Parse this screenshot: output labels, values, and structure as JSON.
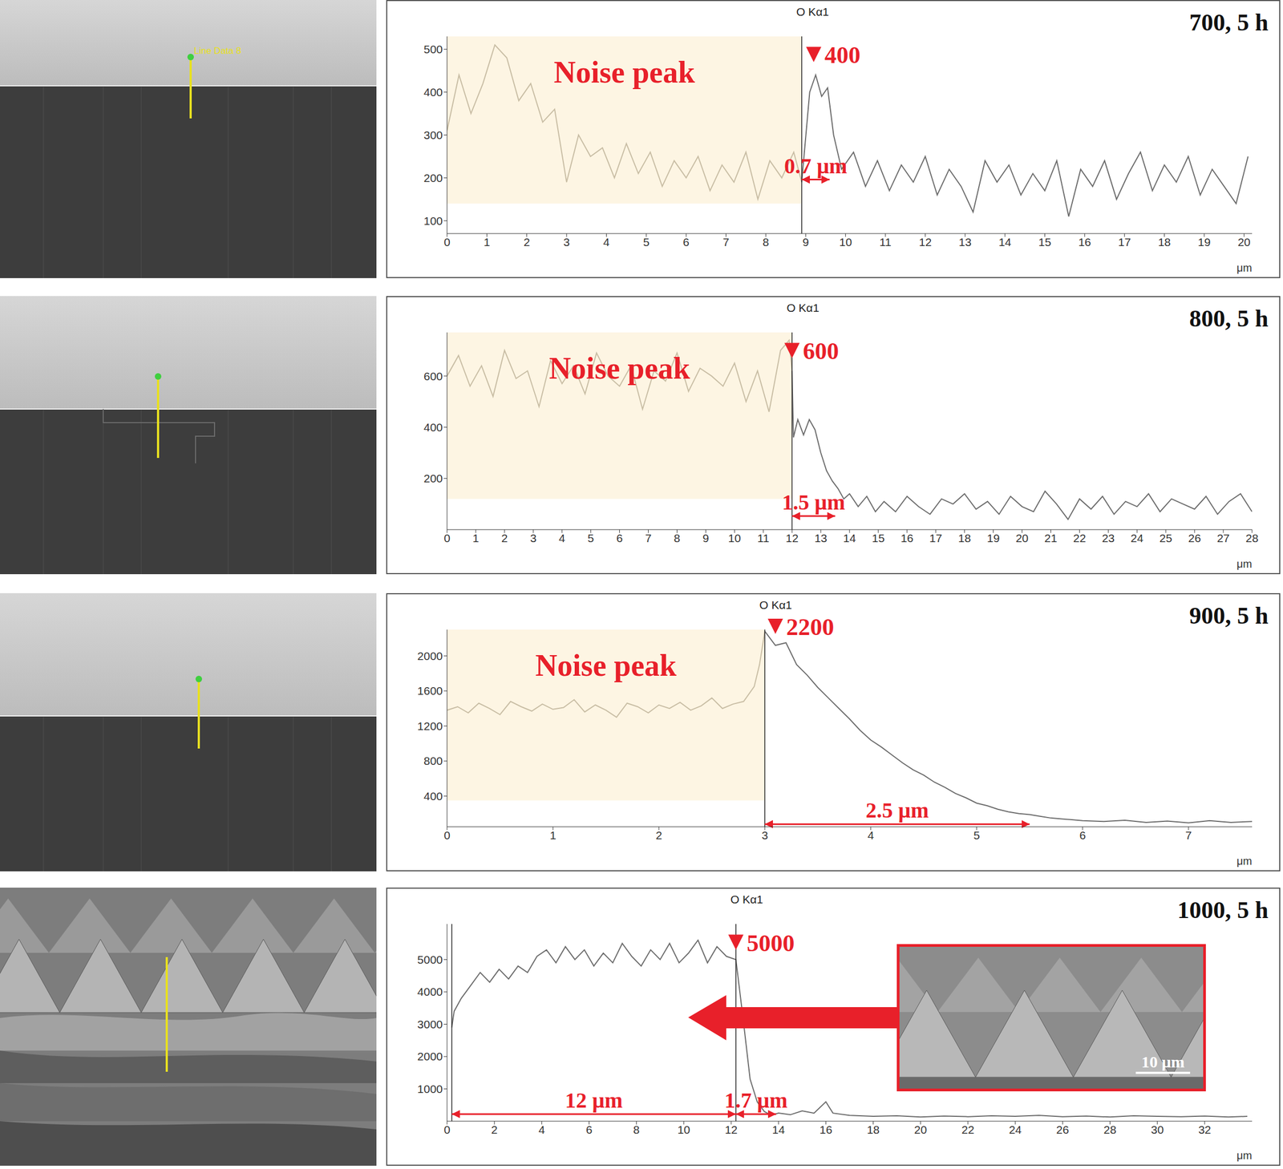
{
  "chart_data": [
    {
      "type": "line",
      "title": "700, 5 h",
      "x_label": "μm",
      "image_label": "Line Data 8",
      "xlim": [
        0,
        20.2
      ],
      "xticks": [
        0,
        1,
        2,
        3,
        4,
        5,
        6,
        7,
        8,
        9,
        10,
        11,
        12,
        13,
        14,
        15,
        16,
        17,
        18,
        19,
        20
      ],
      "ylim": [
        70,
        530
      ],
      "yticks": [
        100,
        200,
        300,
        400,
        500
      ],
      "series": [
        {
          "color": "#c8bda4",
          "x": [
            0,
            0.3,
            0.6,
            0.9,
            1.2,
            1.5,
            1.8,
            2.1,
            2.4,
            2.7,
            3.0,
            3.3,
            3.6,
            3.9,
            4.2,
            4.5,
            4.8,
            5.1,
            5.4,
            5.7,
            6.0,
            6.3,
            6.6,
            6.9,
            7.2,
            7.5,
            7.8,
            8.1,
            8.4,
            8.7,
            8.9
          ],
          "values": [
            310,
            440,
            350,
            420,
            510,
            480,
            380,
            420,
            330,
            360,
            190,
            300,
            250,
            270,
            200,
            280,
            210,
            260,
            180,
            240,
            200,
            250,
            170,
            230,
            190,
            260,
            150,
            240,
            200,
            260,
            190
          ]
        },
        {
          "color": "#6b6b6b",
          "x": [
            8.9,
            9.1,
            9.25,
            9.4,
            9.55,
            9.7,
            9.9,
            10.2,
            10.5,
            10.8,
            11.1,
            11.4,
            11.7,
            12.0,
            12.3,
            12.6,
            12.9,
            13.2,
            13.5,
            13.8,
            14.1,
            14.4,
            14.7,
            15.0,
            15.3,
            15.6,
            15.9,
            16.2,
            16.5,
            16.8,
            17.1,
            17.4,
            17.7,
            18.0,
            18.3,
            18.6,
            18.9,
            19.2,
            19.5,
            19.8,
            20.1
          ],
          "values": [
            190,
            400,
            440,
            390,
            410,
            300,
            220,
            260,
            180,
            240,
            170,
            230,
            190,
            250,
            160,
            220,
            180,
            120,
            240,
            190,
            230,
            160,
            210,
            170,
            240,
            110,
            220,
            180,
            240,
            150,
            210,
            260,
            170,
            230,
            190,
            250,
            160,
            220,
            180,
            140,
            250
          ]
        }
      ],
      "noise_region": {
        "label": "Noise peak",
        "x": [
          0,
          8.9
        ],
        "y": [
          140,
          530
        ],
        "color": "#fbe9c0"
      },
      "boundaries": [
        {
          "x": 8.9,
          "label": "O Kα1"
        }
      ],
      "peak": {
        "label": "400",
        "x": 9.2,
        "y": 470
      },
      "spans": [
        {
          "label": "0.7 μm",
          "x": [
            8.9,
            9.6
          ],
          "y": 196
        }
      ]
    },
    {
      "type": "line",
      "title": "800, 5 h",
      "x_label": "μm",
      "xlim": [
        0,
        28
      ],
      "xticks": [
        0,
        1,
        2,
        3,
        4,
        5,
        6,
        7,
        8,
        9,
        10,
        11,
        12,
        13,
        14,
        15,
        16,
        17,
        18,
        19,
        20,
        21,
        22,
        23,
        24,
        25,
        26,
        27,
        28
      ],
      "ylim": [
        0,
        770
      ],
      "yticks": [
        200,
        400,
        600
      ],
      "series": [
        {
          "color": "#c8bda4",
          "x": [
            0,
            0.4,
            0.8,
            1.2,
            1.6,
            2.0,
            2.4,
            2.8,
            3.2,
            3.6,
            4.0,
            4.4,
            4.8,
            5.2,
            5.6,
            6.0,
            6.4,
            6.8,
            7.2,
            7.6,
            8.0,
            8.4,
            8.8,
            9.2,
            9.6,
            10.0,
            10.4,
            10.8,
            11.2,
            11.6,
            11.9,
            12.0
          ],
          "values": [
            600,
            680,
            560,
            640,
            520,
            700,
            590,
            620,
            480,
            660,
            570,
            640,
            530,
            690,
            600,
            560,
            640,
            470,
            620,
            580,
            690,
            540,
            630,
            600,
            560,
            650,
            500,
            620,
            460,
            700,
            740,
            620
          ]
        },
        {
          "color": "#6b6b6b",
          "x": [
            12.0,
            12.05,
            12.2,
            12.4,
            12.6,
            12.8,
            13.0,
            13.2,
            13.4,
            13.6,
            13.8,
            14.0,
            14.3,
            14.6,
            14.9,
            15.2,
            15.6,
            16.0,
            16.4,
            16.8,
            17.2,
            17.6,
            18.0,
            18.4,
            18.8,
            19.2,
            19.6,
            20.0,
            20.4,
            20.8,
            21.2,
            21.6,
            22.0,
            22.4,
            22.8,
            23.2,
            23.6,
            24.0,
            24.4,
            24.8,
            25.2,
            25.6,
            26.0,
            26.4,
            26.8,
            27.2,
            27.6,
            28.0
          ],
          "values": [
            620,
            360,
            430,
            370,
            430,
            390,
            300,
            230,
            190,
            160,
            120,
            140,
            90,
            130,
            70,
            110,
            70,
            130,
            90,
            60,
            120,
            100,
            140,
            80,
            110,
            60,
            130,
            90,
            70,
            150,
            100,
            40,
            120,
            80,
            130,
            60,
            110,
            90,
            140,
            70,
            120,
            100,
            80,
            130,
            60,
            110,
            140,
            70
          ]
        }
      ],
      "noise_region": {
        "label": "Noise peak",
        "x": [
          0,
          12.0
        ],
        "y": [
          120,
          770
        ],
        "color": "#fbe9c0"
      },
      "boundaries": [
        {
          "x": 12.0,
          "label": "O Kα1"
        }
      ],
      "peak": {
        "label": "600",
        "x": 12.0,
        "y": 670
      },
      "spans": [
        {
          "label": "1.5 μm",
          "x": [
            12.0,
            13.5
          ],
          "y": 53
        }
      ]
    },
    {
      "type": "line",
      "title": "900, 5 h",
      "x_label": "μm",
      "xlim": [
        0,
        7.6
      ],
      "xticks": [
        0,
        1,
        2,
        3,
        4,
        5,
        6,
        7
      ],
      "ylim": [
        50,
        2300
      ],
      "yticks": [
        400,
        800,
        1200,
        1600,
        2000
      ],
      "series": [
        {
          "color": "#c8bda4",
          "x": [
            0,
            0.1,
            0.2,
            0.3,
            0.4,
            0.5,
            0.6,
            0.7,
            0.8,
            0.9,
            1.0,
            1.1,
            1.2,
            1.3,
            1.4,
            1.5,
            1.6,
            1.7,
            1.8,
            1.9,
            2.0,
            2.1,
            2.2,
            2.3,
            2.4,
            2.5,
            2.6,
            2.7,
            2.8,
            2.9,
            2.95,
            3.0
          ],
          "values": [
            1380,
            1420,
            1350,
            1460,
            1400,
            1330,
            1480,
            1420,
            1370,
            1450,
            1390,
            1410,
            1500,
            1360,
            1440,
            1380,
            1300,
            1460,
            1420,
            1350,
            1440,
            1400,
            1470,
            1380,
            1430,
            1520,
            1400,
            1450,
            1480,
            1650,
            1900,
            2280
          ]
        },
        {
          "color": "#6b6b6b",
          "x": [
            3.0,
            3.1,
            3.2,
            3.3,
            3.4,
            3.5,
            3.6,
            3.7,
            3.8,
            3.9,
            4.0,
            4.1,
            4.2,
            4.3,
            4.4,
            4.5,
            4.6,
            4.7,
            4.8,
            4.9,
            5.0,
            5.1,
            5.2,
            5.3,
            5.4,
            5.5,
            5.6,
            5.7,
            5.8,
            5.9,
            6.0,
            6.2,
            6.4,
            6.6,
            6.8,
            7.0,
            7.2,
            7.4,
            7.6
          ],
          "values": [
            2280,
            2120,
            2150,
            1900,
            1780,
            1640,
            1520,
            1400,
            1280,
            1150,
            1040,
            960,
            870,
            780,
            700,
            640,
            560,
            500,
            430,
            380,
            320,
            290,
            250,
            220,
            200,
            190,
            170,
            150,
            140,
            130,
            120,
            110,
            125,
            100,
            115,
            95,
            120,
            100,
            110
          ]
        }
      ],
      "noise_region": {
        "label": "Noise peak",
        "x": [
          0,
          3.0
        ],
        "y": [
          350,
          2300
        ],
        "color": "#fbe9c0"
      },
      "boundaries": [
        {
          "x": 3.0,
          "label": "O Kα1"
        }
      ],
      "peak": {
        "label": "2200",
        "x": 3.1,
        "y": 2250
      },
      "spans": [
        {
          "label": "2.5 μm",
          "x": [
            3.0,
            5.5
          ],
          "y": 80
        }
      ]
    },
    {
      "type": "line",
      "title": "1000, 5 h",
      "x_label": "μm",
      "inset_label": "10 μm",
      "xlim": [
        0,
        34
      ],
      "xticks": [
        0,
        2,
        4,
        6,
        8,
        10,
        12,
        14,
        16,
        18,
        20,
        22,
        24,
        26,
        28,
        30,
        32
      ],
      "ylim": [
        0,
        6100
      ],
      "yticks": [
        1000,
        2000,
        3000,
        4000,
        5000
      ],
      "series": [
        {
          "color": "#6b6b6b",
          "x": [
            0.2,
            0.3,
            0.6,
            1.0,
            1.4,
            1.8,
            2.2,
            2.6,
            3.0,
            3.4,
            3.8,
            4.2,
            4.6,
            5.0,
            5.4,
            5.8,
            6.2,
            6.6,
            7.0,
            7.4,
            7.8,
            8.2,
            8.6,
            9.0,
            9.4,
            9.8,
            10.2,
            10.6,
            11.0,
            11.4,
            11.8,
            12.2,
            12.5,
            12.8,
            13.1,
            13.4,
            13.7,
            14.0,
            14.5,
            15.0,
            15.5,
            16.0,
            16.3,
            17,
            18,
            19,
            20,
            21,
            22,
            23,
            24,
            25,
            26,
            27,
            28,
            29,
            30,
            31,
            32,
            33,
            33.8
          ],
          "values": [
            2900,
            3400,
            3800,
            4200,
            4600,
            4300,
            4700,
            4400,
            4800,
            4600,
            5100,
            5300,
            4900,
            5400,
            5000,
            5300,
            4800,
            5200,
            4900,
            5500,
            5100,
            4800,
            5300,
            5000,
            5500,
            4900,
            5200,
            5600,
            4900,
            5400,
            5100,
            5000,
            3200,
            1300,
            600,
            300,
            180,
            250,
            200,
            320,
            250,
            600,
            250,
            180,
            150,
            170,
            130,
            160,
            140,
            170,
            150,
            180,
            140,
            160,
            130,
            170,
            150,
            140,
            160,
            130,
            150
          ]
        }
      ],
      "boundaries": [
        {
          "x": 0.2
        },
        {
          "x": 12.2,
          "label": "O Kα1"
        }
      ],
      "peak": {
        "label": "5000",
        "x": 12.2,
        "y": 5300
      },
      "spans": [
        {
          "label": "12 μm",
          "x": [
            0.2,
            12.2
          ],
          "y": 220
        },
        {
          "label": "1.7 μm",
          "x": [
            12.2,
            13.9
          ],
          "y": 220
        }
      ]
    }
  ]
}
